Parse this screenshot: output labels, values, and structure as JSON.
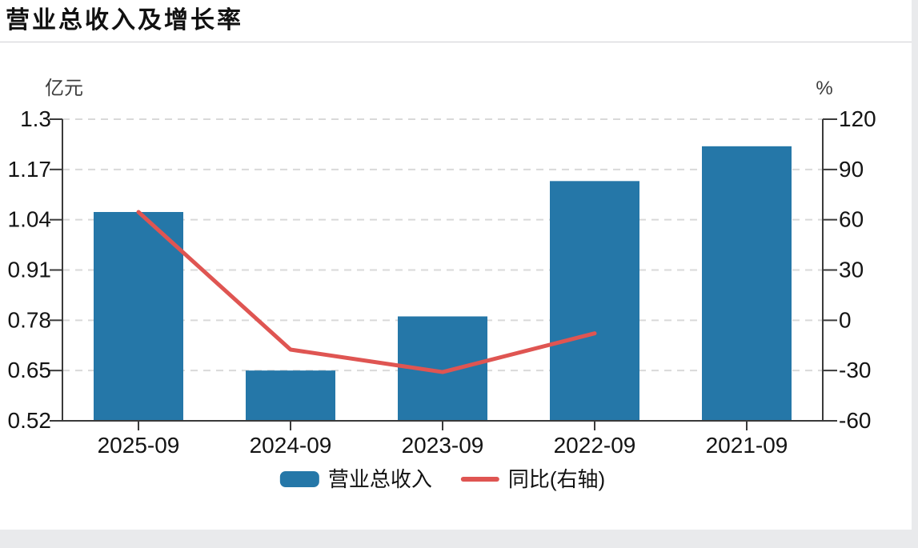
{
  "page": {
    "title": "营业总收入及增长率",
    "background_color": "#e9eaec",
    "card_color": "#ffffff"
  },
  "chart_data": {
    "type": "bar",
    "subtype": "bar+line dual axis",
    "categories": [
      "2025-09",
      "2024-09",
      "2023-09",
      "2022-09",
      "2021-09"
    ],
    "series": [
      {
        "name": "营业总收入",
        "type": "bar",
        "axis": "left",
        "color": "#2577a8",
        "values": [
          1.06,
          0.65,
          0.79,
          1.14,
          1.23
        ]
      },
      {
        "name": "同比(右轴)",
        "type": "line",
        "axis": "right",
        "color": "#df5552",
        "values": [
          64.6,
          -17.5,
          -30.9,
          -7.8,
          null
        ]
      }
    ],
    "left_axis": {
      "unit": "亿元",
      "min": 0.52,
      "max": 1.3,
      "ticks": [
        1.3,
        1.17,
        1.04,
        0.91,
        0.78,
        0.65,
        0.52
      ]
    },
    "right_axis": {
      "unit": "%",
      "min": -60,
      "max": 120,
      "ticks": [
        120,
        90,
        60,
        30,
        0,
        -30,
        -60
      ]
    },
    "grid": {
      "horizontal_dashed": true,
      "color": "#d9d9d9"
    },
    "axis_line_color": "#3a3a3a",
    "tick_label_color": "#141414",
    "legend_position": "bottom-center"
  },
  "legend": {
    "items": [
      {
        "label": "营业总收入",
        "swatch": "bar",
        "color": "#2577a8"
      },
      {
        "label": "同比(右轴)",
        "swatch": "line",
        "color": "#df5552"
      }
    ]
  }
}
